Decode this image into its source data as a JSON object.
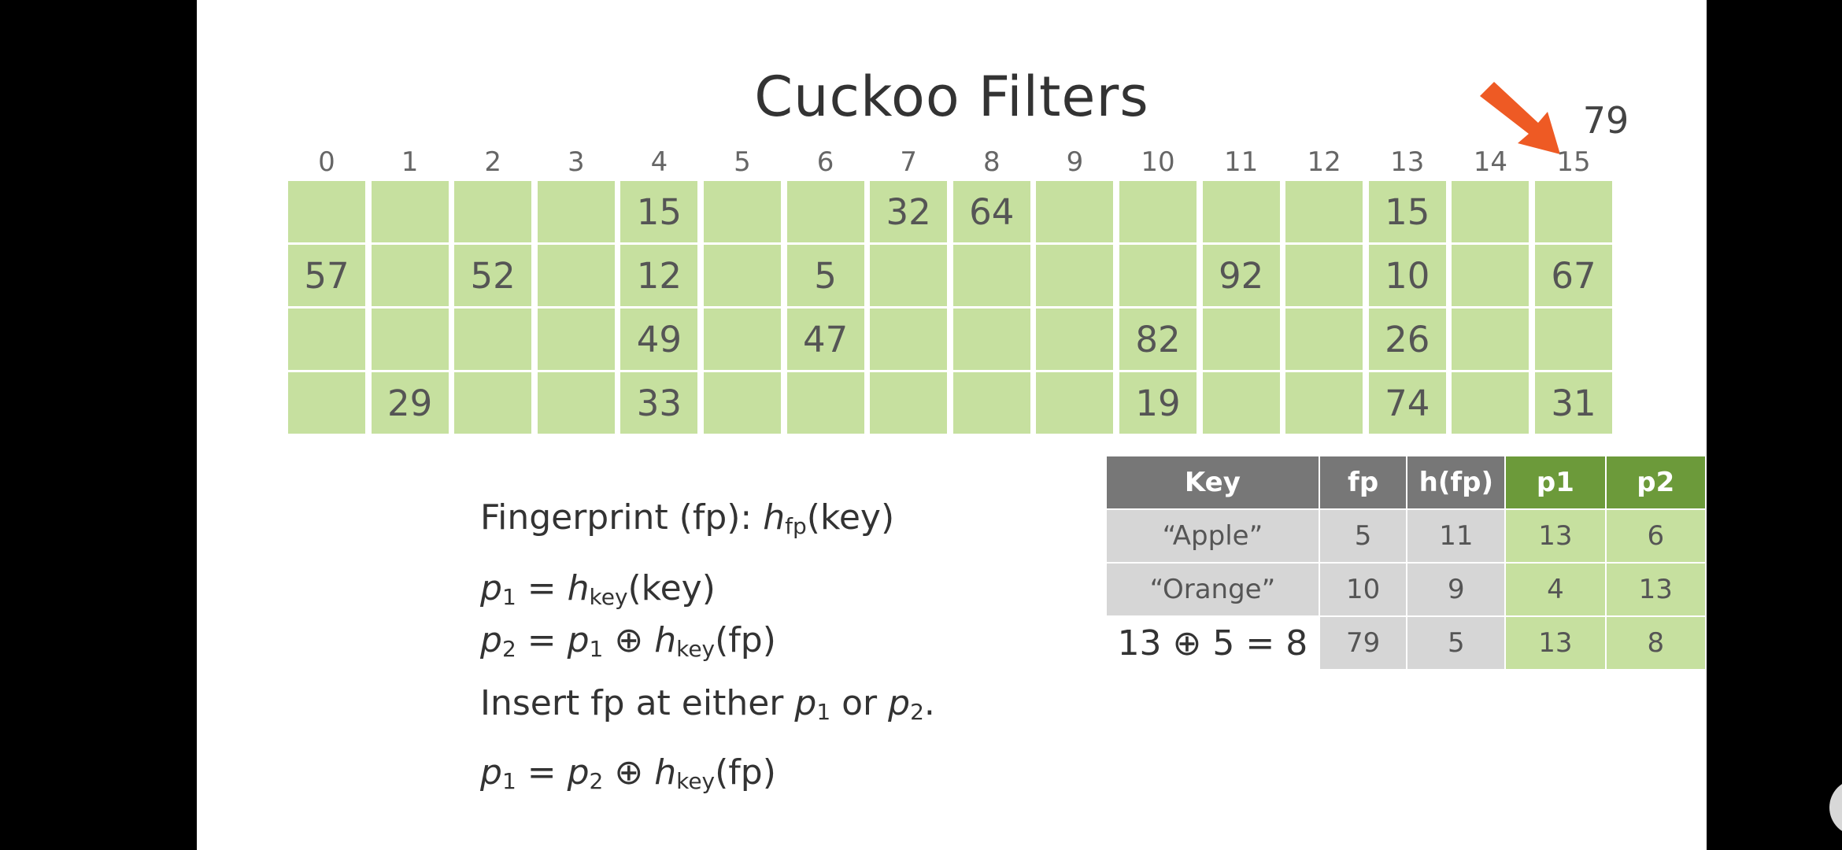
{
  "slide": {
    "title": "Cuckoo Filters",
    "highlight_value": "79",
    "columns": [
      "0",
      "1",
      "2",
      "3",
      "4",
      "5",
      "6",
      "7",
      "8",
      "9",
      "10",
      "11",
      "12",
      "13",
      "14",
      "15"
    ],
    "buckets": [
      [
        "",
        "57",
        "",
        ""
      ],
      [
        "",
        "",
        "",
        "29"
      ],
      [
        "",
        "52",
        "",
        ""
      ],
      [
        "",
        "",
        "",
        ""
      ],
      [
        "15",
        "12",
        "49",
        "33"
      ],
      [
        "",
        "",
        "",
        ""
      ],
      [
        "",
        "5",
        "47",
        ""
      ],
      [
        "32",
        "",
        "",
        ""
      ],
      [
        "64",
        "",
        "",
        ""
      ],
      [
        "",
        "",
        "",
        ""
      ],
      [
        "",
        "",
        "82",
        "19"
      ],
      [
        "",
        "92",
        "",
        ""
      ],
      [
        "",
        "",
        "",
        ""
      ],
      [
        "15",
        "10",
        "26",
        "74"
      ],
      [
        "",
        "",
        "",
        ""
      ],
      [
        "",
        "67",
        "",
        "31"
      ]
    ],
    "formulas": {
      "fingerprint_prefix": "Fingerprint (fp): ",
      "h": "h",
      "fp_sub": "fp",
      "key_arg": "(key)",
      "p": "p",
      "one": "1",
      "two": "2",
      "eq": " = ",
      "xor": " ⊕ ",
      "key_sub": "key",
      "fp_arg": "(fp)",
      "insert_prefix": "Insert fp at either ",
      "or": " or ",
      "period": "."
    },
    "table": {
      "headers": [
        "Key",
        "fp",
        "h(fp)",
        "p1",
        "p2"
      ],
      "rows": [
        [
          "“Apple”",
          "5",
          "11",
          "13",
          "6"
        ],
        [
          "“Orange”",
          "10",
          "9",
          "4",
          "13"
        ],
        [
          "13 ⊕ 5 = 8",
          "79",
          "5",
          "13",
          "8"
        ]
      ]
    },
    "colors": {
      "bucket_green": "#c6e09f",
      "header_grey": "#777777",
      "header_green": "#6c9a3a",
      "arrow": "#ee5a24"
    },
    "icons": {
      "arrow": "arrow-icon",
      "play": "play-icon"
    }
  }
}
